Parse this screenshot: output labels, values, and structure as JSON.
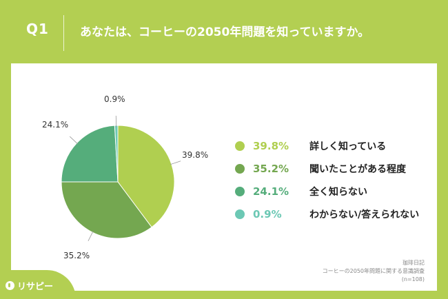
{
  "header": {
    "question_number": "Q1",
    "question_text": "あなたは、コーヒーの2050年問題を知っていますか。"
  },
  "chart_data": {
    "type": "pie",
    "title": "",
    "categories": [
      "詳しく知っている",
      "聞いたことがある程度",
      "全く知らない",
      "わからない/答えられない"
    ],
    "values": [
      39.8,
      35.2,
      24.1,
      0.9
    ],
    "value_labels": [
      "39.8%",
      "35.2%",
      "24.1%",
      "0.9%"
    ],
    "colors": [
      "#b0cf50",
      "#74a750",
      "#55ad7b",
      "#6cc8b4"
    ],
    "legend_position": "right",
    "start_angle": "12 o'clock",
    "direction": "clockwise"
  },
  "source": {
    "line1": "珈琲日記",
    "line2": "コーヒーの2050年問題に関する意識調査",
    "line3": "(n=108)"
  },
  "logo": {
    "text": "リサピー",
    "icon": "location-pin-icon"
  }
}
